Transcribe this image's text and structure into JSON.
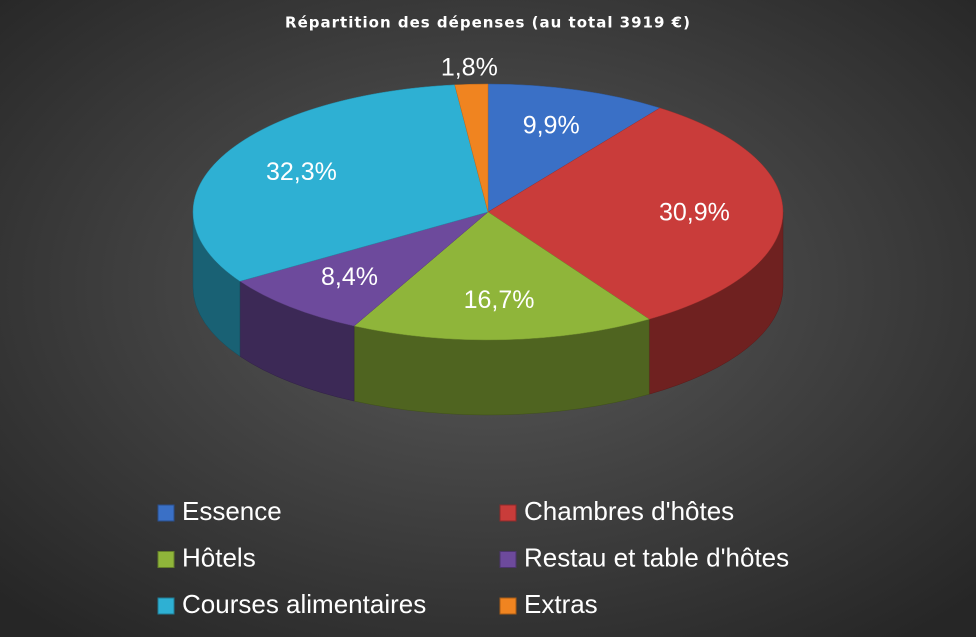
{
  "chart_data": {
    "type": "pie3d",
    "title": "Répartition des dépenses (au total 3919 €)",
    "categories": [
      "Essence",
      "Chambres d'hôtes",
      "Hôtels",
      "Restau et table d'hôtes",
      "Courses alimentaires",
      "Extras"
    ],
    "values": [
      9.9,
      30.9,
      16.7,
      8.4,
      32.3,
      1.8
    ],
    "value_labels": [
      "9,9%",
      "30,9%",
      "16,7%",
      "8,4%",
      "32,3%",
      "1,8%"
    ],
    "colors": [
      "#3a70c6",
      "#c93c3a",
      "#8fb53a",
      "#6d4a9c",
      "#2eb0d3",
      "#f08420"
    ],
    "legend": "bottom"
  }
}
